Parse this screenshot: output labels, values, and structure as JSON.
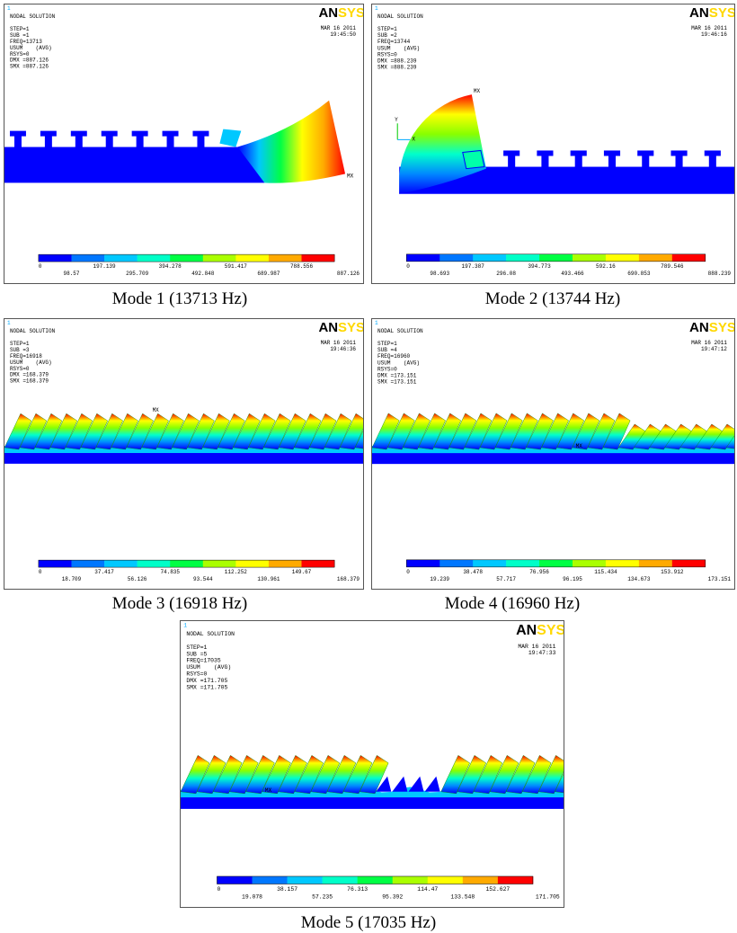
{
  "panels": [
    {
      "index_label": "1",
      "title": "NODAL SOLUTION",
      "info": [
        "STEP=1",
        "SUB =1",
        "FREQ=13713",
        "USUM    (AVG)",
        "RSYS=0",
        "DMX =887.126",
        "SMX =887.126"
      ],
      "date": "MAR 16 2011",
      "time": "19:45:50",
      "logo": [
        "AN",
        "SYS"
      ],
      "max_label": "MX",
      "legend": [
        "0",
        "98.57",
        "197.139",
        "295.709",
        "394.278",
        "492.848",
        "591.417",
        "689.987",
        "788.556",
        "887.126"
      ],
      "caption": "Mode 1 (13713 Hz)"
    },
    {
      "index_label": "1",
      "title": "NODAL SOLUTION",
      "info": [
        "STEP=1",
        "SUB =2",
        "FREQ=13744",
        "USUM    (AVG)",
        "RSYS=0",
        "DMX =888.239",
        "SMX =888.239"
      ],
      "date": "MAR 16 2011",
      "time": "19:46:16",
      "logo": [
        "AN",
        "SYS"
      ],
      "max_label": "MX",
      "axis_labels": [
        "Y",
        "X"
      ],
      "legend": [
        "0",
        "98.693",
        "197.387",
        "296.08",
        "394.773",
        "493.466",
        "592.16",
        "690.853",
        "789.546",
        "888.239"
      ],
      "caption": "Mode 2 (13744 Hz)"
    },
    {
      "index_label": "1",
      "title": "NODAL SOLUTION",
      "info": [
        "STEP=1",
        "SUB =3",
        "FREQ=16918",
        "USUM    (AVG)",
        "RSYS=0",
        "DMX =168.379",
        "SMX =168.379"
      ],
      "date": "MAR 16 2011",
      "time": "19:46:36",
      "logo": [
        "AN",
        "SYS"
      ],
      "max_label": "MX",
      "legend": [
        "0",
        "18.709",
        "37.417",
        "56.126",
        "74.835",
        "93.544",
        "112.252",
        "130.961",
        "149.67",
        "168.379"
      ],
      "caption": "Mode 3 (16918 Hz)"
    },
    {
      "index_label": "1",
      "title": "NODAL SOLUTION",
      "info": [
        "STEP=1",
        "SUB =4",
        "FREQ=16960",
        "USUM    (AVG)",
        "RSYS=0",
        "DMX =173.151",
        "SMX =173.151"
      ],
      "date": "MAR 16 2011",
      "time": "19:47:12",
      "logo": [
        "AN",
        "SYS"
      ],
      "max_label": "MX",
      "legend": [
        "0",
        "19.239",
        "38.478",
        "57.717",
        "76.956",
        "96.195",
        "115.434",
        "134.673",
        "153.912",
        "173.151"
      ],
      "caption": "Mode 4 (16960 Hz)"
    },
    {
      "index_label": "1",
      "title": "NODAL SOLUTION",
      "info": [
        "STEP=1",
        "SUB =5",
        "FREQ=17035",
        "USUM    (AVG)",
        "RSYS=0",
        "DMX =171.705",
        "SMX =171.705"
      ],
      "date": "MAR 16 2011",
      "time": "19:47:33",
      "logo": [
        "AN",
        "SYS"
      ],
      "max_label": "MX",
      "legend": [
        "0",
        "19.078",
        "38.157",
        "57.235",
        "76.313",
        "95.392",
        "114.47",
        "133.548",
        "152.627",
        "171.705"
      ],
      "caption": "Mode 5 (17035 Hz)"
    }
  ]
}
